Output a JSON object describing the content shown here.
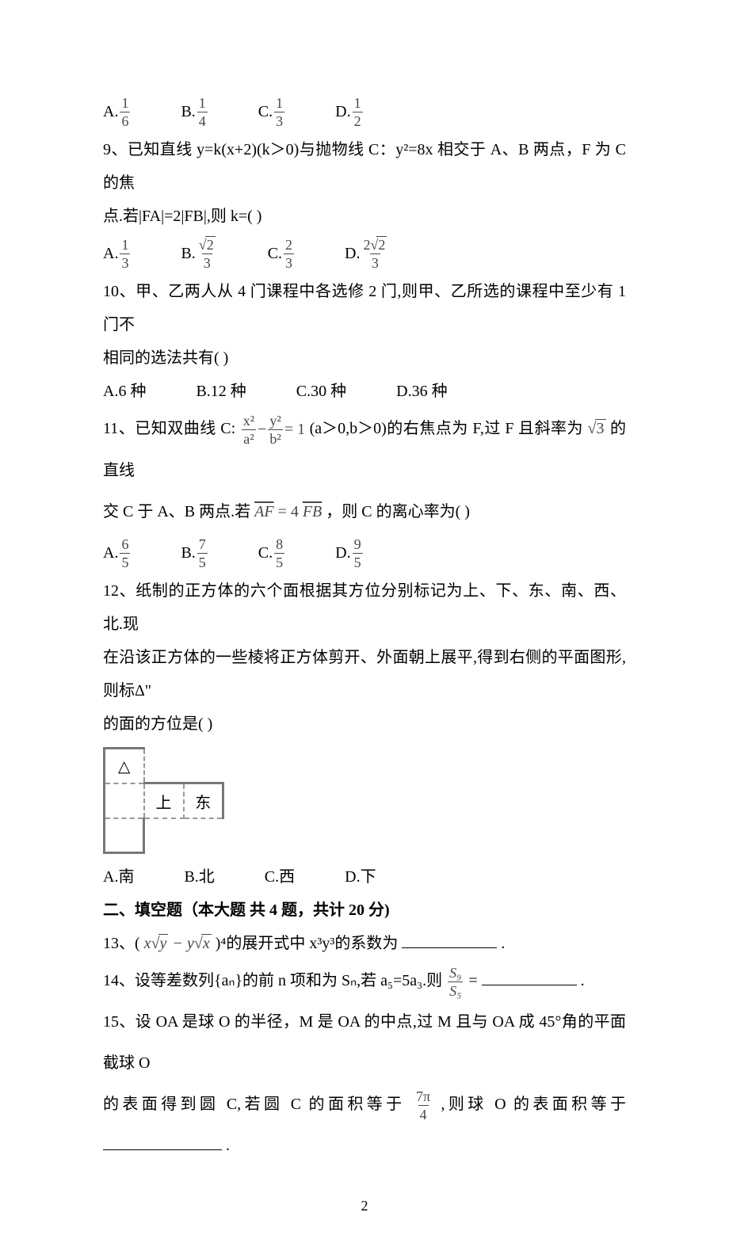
{
  "q8_options": {
    "A": {
      "num": "1",
      "den": "6"
    },
    "B": {
      "num": "1",
      "den": "4"
    },
    "C": {
      "num": "1",
      "den": "3"
    },
    "D": {
      "num": "1",
      "den": "2"
    }
  },
  "q9": {
    "text_l1": "9、已知直线 y=k(x+2)(k＞0)与抛物线 C：y²=8x 相交于 A、B 两点，F 为 C 的焦",
    "text_l2": "点.若|FA|=2|FB|,则 k=(    )"
  },
  "q9_options": {
    "A": {
      "type": "frac",
      "num": "1",
      "den": "3"
    },
    "B": {
      "type": "sqrt_over",
      "num_rad": "2",
      "den": "3"
    },
    "C": {
      "type": "frac",
      "num": "2",
      "den": "3"
    },
    "D": {
      "type": "mult_sqrt_over",
      "coef": "2",
      "num_rad": "2",
      "den": "3"
    }
  },
  "q10": {
    "text_l1": "10、甲、乙两人从 4 门课程中各选修 2 门,则甲、乙所选的课程中至少有 1 门不",
    "text_l2": "相同的选法共有(    )",
    "opts": {
      "A": "A.6 种",
      "B": "B.12 种",
      "C": "C.30 种",
      "D": "D.36 种"
    }
  },
  "q11": {
    "pre": "11、已知双曲线 C:",
    "frac1": {
      "num": "x²",
      "den": "a²"
    },
    "minus": " − ",
    "frac2": {
      "num": "y²",
      "den": "b²"
    },
    "eq": " = 1",
    "mid": "(a＞0,b＞0)的右焦点为 F,过 F 且斜率为",
    "sqrt": "3",
    "tail1": "的直线",
    "line2_pre": "交 C 于 A、B 两点.若 ",
    "vec_eq_left": "AF",
    "eq4": " = 4",
    "vec_eq_right": "FB",
    "line2_tail": " ，则 C 的离心率为(    )"
  },
  "q11_options": {
    "A": {
      "num": "6",
      "den": "5"
    },
    "B": {
      "num": "7",
      "den": "5"
    },
    "C": {
      "num": "8",
      "den": "5"
    },
    "D": {
      "num": "9",
      "den": "5"
    }
  },
  "q12": {
    "l1": "12、纸制的正方体的六个面根据其方位分别标记为上、下、东、南、西、北.现",
    "l2": "在沿该正方体的一些棱将正方体剪开、外面朝上展平,得到右侧的平面图形,则标Δ\"",
    "l3": "的面的方位是(    )",
    "cell_tri": "△",
    "cell_up": "上",
    "cell_east": "东",
    "opts": {
      "A": "A.南",
      "B": "B.北",
      "C": "C.西",
      "D": "D.下"
    }
  },
  "section2": "二、填空题（本大题 共 4 题，共计 20 分)",
  "q13": {
    "pre": "13、( ",
    "expr_a": "x",
    "rad_a": "y",
    "minus": " − ",
    "expr_b": "y",
    "rad_b": "x",
    "post": " )⁴的展开式中 x³y³的系数为",
    "period": "."
  },
  "q14": {
    "pre": "14、设等差数列{aₙ}的前 n 项和为 Sₙ,若 a₅=5a₃.则",
    "frac": {
      "num": "S₉",
      "den": "S₅"
    },
    "eq": " =",
    "period": "."
  },
  "q15": {
    "l1": "15、设 OA 是球 O 的半径，M 是 OA 的中点,过 M 且与 OA 成 45°角的平面截球 O",
    "l2_pre": "的表面得到圆 C,若圆 C 的面积等于 ",
    "frac": {
      "num": "7π",
      "den": "4"
    },
    "l2_post": " ,则球 O 的表面积等于",
    "period": "."
  },
  "pagenum": "2"
}
